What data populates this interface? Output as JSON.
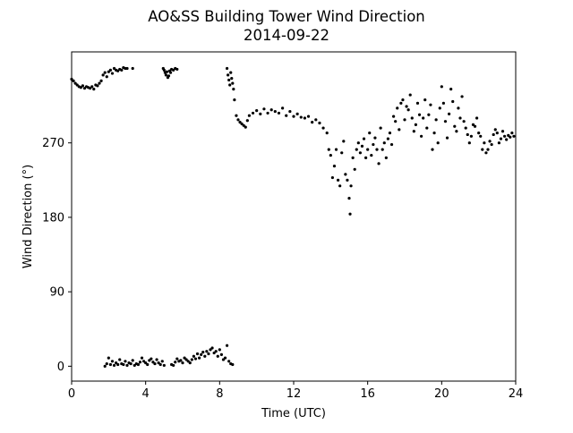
{
  "chart_data": {
    "type": "scatter",
    "title": "AO&SS Building Tower Wind Direction",
    "subtitle": "2014-09-22",
    "xlabel": "Time (UTC)",
    "ylabel": "Wind Direction (°)",
    "xlim": [
      0,
      24
    ],
    "ylim": [
      -18,
      380
    ],
    "xticks": [
      0,
      4,
      8,
      12,
      16,
      20,
      24
    ],
    "xtick_labels": [
      "0",
      "4",
      "8",
      "12",
      "16",
      "20",
      "24"
    ],
    "yticks": [
      0,
      90,
      180,
      270
    ],
    "ytick_labels": [
      "0",
      "90",
      "180",
      "270"
    ],
    "grid": false,
    "legend": "none",
    "marker_color": "#000000",
    "series": [
      {
        "segments": [
          {
            "x": [
              0.0,
              0.1,
              0.2,
              0.3,
              0.4,
              0.5,
              0.6,
              0.7,
              0.8,
              0.9,
              1.0,
              1.1,
              1.2,
              1.3,
              1.4,
              1.5,
              1.6,
              1.7,
              1.8,
              1.9,
              2.0,
              2.1,
              2.2,
              2.3,
              2.4,
              2.5,
              2.6,
              2.7,
              2.8,
              2.9,
              3.0,
              3.3
            ],
            "y": [
              347,
              345,
              342,
              340,
              338,
              337,
              339,
              336,
              338,
              337,
              336,
              338,
              335,
              340,
              339,
              342,
              345,
              352,
              355,
              350,
              356,
              358,
              354,
              360,
              358,
              357,
              359,
              358,
              361,
              360,
              360,
              360
            ]
          },
          {
            "x": [
              4.95,
              5.0,
              5.05,
              5.1,
              5.15,
              5.2,
              5.25,
              5.3,
              5.35,
              5.4,
              5.5,
              5.6,
              5.7
            ],
            "y": [
              360,
              358,
              355,
              352,
              356,
              349,
              351,
              357,
              355,
              359,
              358,
              360,
              359
            ]
          },
          {
            "x": [
              8.4,
              8.45,
              8.5,
              8.55,
              8.6,
              8.65,
              8.7,
              8.75,
              8.8,
              8.9,
              9.0,
              9.1,
              9.2,
              9.3,
              9.4,
              9.5,
              9.6,
              9.8,
              10.0,
              10.2,
              10.4,
              10.6,
              10.8,
              11.0,
              11.2,
              11.4,
              11.6,
              11.8,
              12.0,
              12.2,
              12.4,
              12.6,
              12.8,
              13.0,
              13.2,
              13.4,
              13.6,
              13.8
            ],
            "y": [
              360,
              352,
              346,
              340,
              355,
              348,
              342,
              335,
              322,
              303,
              298,
              295,
              293,
              291,
              289,
              297,
              303,
              306,
              309,
              305,
              311,
              306,
              310,
              308,
              306,
              312,
              303,
              308,
              302,
              305,
              301,
              300,
              302,
              295,
              298,
              294,
              288,
              282
            ]
          },
          {
            "x": [
              13.9,
              14.0,
              14.1,
              14.2,
              14.3,
              14.4,
              14.5,
              14.6,
              14.7,
              14.8,
              14.9,
              15.0,
              15.05,
              15.1,
              15.2,
              15.3,
              15.4,
              15.5,
              15.6,
              15.7,
              15.8,
              15.9,
              16.0,
              16.1,
              16.2,
              16.3,
              16.4,
              16.5,
              16.6,
              16.7,
              16.8,
              16.9,
              17.0,
              17.1,
              17.2,
              17.3,
              17.4,
              17.5,
              17.6,
              17.7,
              17.8,
              17.9,
              18.0,
              18.1,
              18.2,
              18.3,
              18.4,
              18.5,
              18.6,
              18.7,
              18.8,
              18.9,
              19.0,
              19.1,
              19.2,
              19.3,
              19.4,
              19.5,
              19.6,
              19.7,
              19.8,
              19.9,
              20.0,
              20.1,
              20.2,
              20.3,
              20.4,
              20.5,
              20.6,
              20.7,
              20.8,
              20.9,
              21.0,
              21.1,
              21.2,
              21.3,
              21.4,
              21.5,
              21.6,
              21.7,
              21.8,
              21.9,
              22.0,
              22.1,
              22.2,
              22.3,
              22.4,
              22.5,
              22.6,
              22.7,
              22.8,
              22.9,
              23.0,
              23.1,
              23.2,
              23.3,
              23.4,
              23.5,
              23.6,
              23.7,
              23.8,
              23.9
            ],
            "y": [
              262,
              255,
              228,
              242,
              262,
              225,
              218,
              258,
              272,
              232,
              225,
              203,
              184,
              218,
              252,
              238,
              262,
              270,
              258,
              266,
              275,
              252,
              262,
              282,
              255,
              268,
              276,
              262,
              245,
              288,
              262,
              270,
              252,
              275,
              282,
              268,
              302,
              296,
              312,
              286,
              318,
              322,
              298,
              314,
              310,
              328,
              300,
              284,
              292,
              318,
              304,
              278,
              300,
              322,
              288,
              304,
              316,
              262,
              282,
              298,
              270,
              312,
              338,
              318,
              296,
              276,
              305,
              335,
              320,
              290,
              284,
              312,
              300,
              326,
              296,
              288,
              280,
              270,
              278,
              292,
              290,
              300,
              282,
              278,
              262,
              270,
              258,
              262,
              272,
              268,
              280,
              286,
              282,
              270,
              275,
              284,
              278,
              274,
              279,
              277,
              282,
              278
            ]
          },
          {
            "x": [
              1.8,
              1.9,
              2.0,
              2.1,
              2.2,
              2.3,
              2.4,
              2.5,
              2.6,
              2.7,
              2.8,
              2.9,
              3.0,
              3.1,
              3.2,
              3.3,
              3.4,
              3.5,
              3.6,
              3.7,
              3.8,
              3.9,
              4.0,
              4.1,
              4.2,
              4.3,
              4.4,
              4.5,
              4.6,
              4.7,
              4.8,
              4.9,
              5.0
            ],
            "y": [
              0,
              3,
              10,
              2,
              6,
              1,
              4,
              2,
              8,
              3,
              2,
              6,
              1,
              4,
              3,
              7,
              1,
              3,
              2,
              5,
              10,
              6,
              4,
              2,
              7,
              9,
              5,
              3,
              8,
              4,
              2,
              6,
              1
            ]
          },
          {
            "x": [
              5.4,
              5.5,
              5.6,
              5.7,
              5.8,
              5.9,
              6.0,
              6.1,
              6.2,
              6.3,
              6.4,
              6.5,
              6.6,
              6.7,
              6.8,
              6.9,
              7.0,
              7.1,
              7.2,
              7.3,
              7.4,
              7.5,
              7.6,
              7.7,
              7.8,
              7.9,
              8.0,
              8.1,
              8.2,
              8.3,
              8.4,
              8.5,
              8.6,
              8.7
            ],
            "y": [
              2,
              1,
              5,
              9,
              6,
              7,
              4,
              10,
              8,
              6,
              4,
              8,
              12,
              9,
              15,
              10,
              14,
              17,
              12,
              18,
              15,
              20,
              22,
              16,
              18,
              12,
              20,
              14,
              8,
              10,
              25,
              6,
              3,
              2
            ]
          }
        ]
      }
    ]
  }
}
